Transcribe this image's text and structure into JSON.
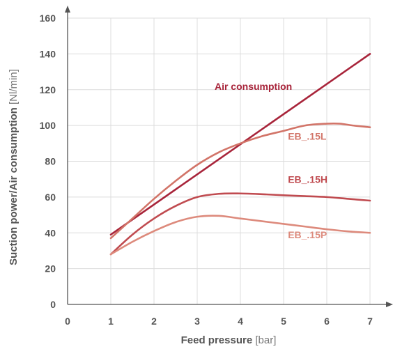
{
  "chart_data": {
    "type": "line",
    "xlabel": {
      "name": "Feed pressure",
      "unit": "[bar]"
    },
    "ylabel": {
      "name": "Suction power/Air consumption",
      "unit": "[Nl/min]"
    },
    "xlim": [
      0,
      7
    ],
    "ylim": [
      0,
      160
    ],
    "x_ticks": [
      0,
      1,
      2,
      3,
      4,
      5,
      6,
      7
    ],
    "y_ticks": [
      0,
      20,
      40,
      60,
      80,
      100,
      120,
      140,
      160
    ],
    "grid": true,
    "series": [
      {
        "name": "Air consumption",
        "color": "#a8243a",
        "x": [
          1,
          7
        ],
        "y": [
          39,
          140
        ]
      },
      {
        "name": "EB_.15L",
        "color": "#d27468",
        "x": [
          1,
          1.5,
          2,
          2.5,
          3,
          3.5,
          4,
          4.5,
          5,
          5.5,
          6,
          6.3,
          6.6,
          7
        ],
        "y": [
          37,
          48,
          59,
          69,
          78,
          85,
          90,
          94,
          97,
          100,
          101,
          101,
          100,
          99
        ]
      },
      {
        "name": "EB_.15H",
        "color": "#c04b50",
        "x": [
          1,
          1.5,
          2,
          2.5,
          3,
          3.5,
          4,
          4.5,
          5,
          5.5,
          6,
          6.5,
          7
        ],
        "y": [
          28,
          39,
          48,
          55,
          60,
          61.8,
          62,
          61.6,
          61,
          60.5,
          60,
          59,
          58
        ]
      },
      {
        "name": "EB_.15P",
        "color": "#dd8a7c",
        "x": [
          1,
          1.5,
          2,
          2.5,
          3,
          3.5,
          4,
          4.5,
          5,
          5.5,
          6,
          6.5,
          7
        ],
        "y": [
          28,
          35,
          41,
          46,
          49,
          49.5,
          48,
          46.5,
          45,
          43.5,
          42,
          40.8,
          40
        ]
      }
    ]
  }
}
